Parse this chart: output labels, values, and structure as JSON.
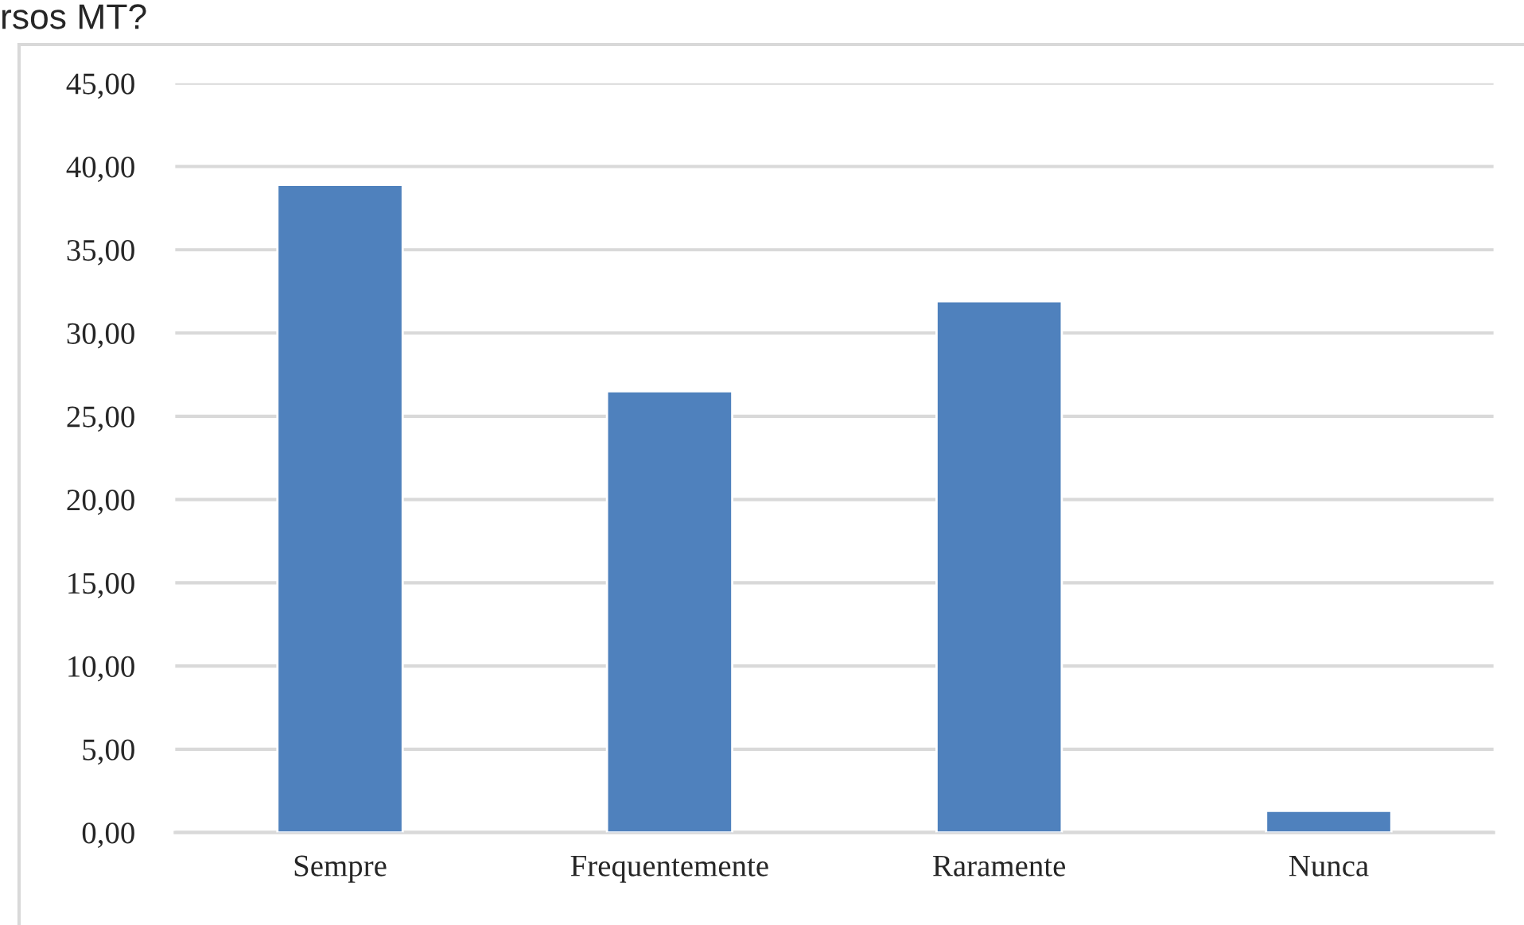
{
  "chart_data": {
    "type": "bar",
    "title": "rsos MT?",
    "categories": [
      "Sempre",
      "Frequentemente",
      "Raramente",
      "Nunca"
    ],
    "values": [
      38.9,
      26.5,
      31.9,
      1.3
    ],
    "color": "#4f81bd",
    "ylim": [
      0,
      45
    ],
    "yticks": [
      {
        "value": 0,
        "label": "0,00"
      },
      {
        "value": 5,
        "label": "5,00"
      },
      {
        "value": 10,
        "label": "10,00"
      },
      {
        "value": 15,
        "label": "15,00"
      },
      {
        "value": 20,
        "label": "20,00"
      },
      {
        "value": 25,
        "label": "25,00"
      },
      {
        "value": 30,
        "label": "30,00"
      },
      {
        "value": 35,
        "label": "35,00"
      },
      {
        "value": 40,
        "label": "40,00"
      },
      {
        "value": 45,
        "label": "45,00"
      }
    ],
    "grid": "y"
  }
}
